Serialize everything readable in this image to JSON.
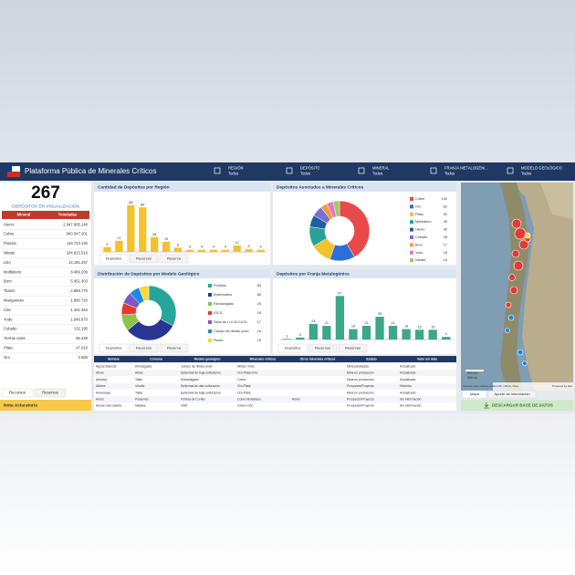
{
  "header": {
    "title": "Plataforma Pública de Minerales Críticos",
    "filters": [
      {
        "label": "REGIÓN",
        "value": "Todos"
      },
      {
        "label": "DEPÓSITO",
        "value": "Todos"
      },
      {
        "label": "MINERAL",
        "value": "Todos"
      },
      {
        "label": "FRANJA METALOGÉNI...",
        "value": "Todos"
      },
      {
        "label": "MODELO GEOLÓGICO",
        "value": "Todos"
      }
    ]
  },
  "summary": {
    "count": 267,
    "label": "DEPÓSITOS EN VISUALIZACIÓN"
  },
  "minerals_table": {
    "columns": [
      "Mineral",
      "Toneladas"
    ],
    "rows": [
      [
        "Hierro",
        "2.947.805.140"
      ],
      [
        "Cobre",
        "900.047.201"
      ],
      [
        "Potasio",
        "116.733.130"
      ],
      [
        "Nitrato",
        "104.613.510"
      ],
      [
        "Litio",
        "14.191.267"
      ],
      [
        "Molibdeno",
        "8.469.209"
      ],
      [
        "Boro",
        "5.451.403"
      ],
      [
        "Titanio",
        "2.868.770"
      ],
      [
        "Manganeso",
        "1.890.720"
      ],
      [
        "Cinc",
        "1.151.464"
      ],
      [
        "Yodo",
        "1.046.870"
      ],
      [
        "Cobalto",
        "132.195"
      ],
      [
        "Tierras raras",
        "66.428"
      ],
      [
        "Plata",
        "47.010"
      ],
      [
        "Oro",
        "3.666"
      ]
    ],
    "tabs": [
      "Recursos",
      "Reservas"
    ]
  },
  "note": "Nota Aclaratoria",
  "chart_data": [
    {
      "type": "bar",
      "title": "Cantidad de Depósitos por Región",
      "color": "#f2c12e",
      "categories": [
        null,
        null,
        null,
        null,
        null,
        null,
        null,
        null,
        null,
        null,
        null,
        null,
        null,
        null
      ],
      "values": [
        9,
        21,
        88,
        84,
        28,
        19,
        8,
        4,
        4,
        4,
        4,
        12,
        5,
        4
      ],
      "ylim": [
        0,
        100
      ],
      "tabs": [
        "Depósitos",
        "Recursos",
        "Reserva"
      ]
    },
    {
      "type": "donut",
      "title": "Depósitos Asociados a Minerales Críticos",
      "categories": [
        "Cobre",
        "Oro",
        "Plata",
        "Molibdeno",
        "Hierro",
        "Cobalto",
        "Boro",
        "Yodo",
        "Nitrato"
      ],
      "values": [
        192,
        62,
        52,
        49,
        30,
        26,
        17,
        16,
        16
      ],
      "colors": [
        "#e84a4a",
        "#2e6fd6",
        "#f2c12e",
        "#2aa198",
        "#1f5f9e",
        "#7b6fd6",
        "#f29e38",
        "#e377c2",
        "#9ccc65"
      ]
    },
    {
      "type": "donut",
      "title": "Distribución de Depósitos por Modelo Geológico",
      "categories": [
        "Pórfidos",
        "Epitermales",
        "Estratoligado",
        "IOCG",
        "Salar de Li-K-B-Cs-Sr",
        "Campo de nitrato-yodo",
        "Placer"
      ],
      "values": [
        83,
        80,
        25,
        18,
        17,
        16,
        15
      ],
      "colors": [
        "#26a69a",
        "#283593",
        "#8bc34a",
        "#e53935",
        "#7e57c2",
        "#1e88e5",
        "#fdd835"
      ],
      "tabs": [
        "Depósitos",
        "Recursos",
        "Reserva"
      ]
    },
    {
      "type": "bar",
      "title": "Depósitos por Franja Metalogénica",
      "color": "#3aa889",
      "categories": [
        null,
        null,
        null,
        null,
        null,
        null,
        null,
        null,
        null,
        null,
        null,
        null,
        null
      ],
      "values": [
        1,
        3,
        24,
        21,
        67,
        16,
        21,
        35,
        21,
        16,
        15,
        15,
        4
      ],
      "ylim": [
        0,
        80
      ],
      "tabs": [
        "Depósitos",
        "Recursos",
        "Reservas"
      ]
    }
  ],
  "deposits_table": {
    "columns": [
      "Nombre",
      "Comuna",
      "Modelo geológico",
      "Minerales críticos",
      "Otros minerales críticos",
      "Estado",
      "Valor del dato"
    ],
    "rows": [
      [
        "Aguas Blancas",
        "Antofagasta",
        "Campo de nitrato-yodo",
        "Nitrato-Yodo",
        "",
        "Mina paralizada",
        "Actualizado"
      ],
      [
        "Alhué",
        "Alhué",
        "Epitermal de baja sulfuración",
        "Oro-Plata-Cinc",
        "",
        "Mina en producción",
        "Actualizado"
      ],
      [
        "Altamira",
        "Taltal",
        "Estratoligado",
        "Cobre",
        "",
        "Mina en producción",
        "Actualizado"
      ],
      [
        "Altares",
        "Vicuña",
        "Epitermal de alta sulfuración",
        "Oro-Plata",
        "",
        "Prospecto/Proyecto",
        "Histórico"
      ],
      [
        "Amancaya",
        "Taltal",
        "Epitermal de baja sulfuración",
        "Oro-Plata",
        "",
        "Mina en producción",
        "Actualizado"
      ],
      [
        "Amos",
        "Putaendo",
        "Pórfido de Cu-Mo",
        "Cobre-Molibdeno",
        "Renio",
        "Prospecto/Proyecto",
        "Sin información"
      ],
      [
        "Anción San Sabita",
        "Natales",
        "VMS",
        "Cobre-Cinc",
        "",
        "Prospecto/Proyecto",
        "Sin información"
      ]
    ]
  },
  "map": {
    "attribution": "Sources: Esri, Maxar, Airbus DS, USGS, NGA,",
    "powered": "Powered by Esri",
    "scale": [
      "500 km",
      "300 mi"
    ],
    "tabs": [
      "Mapa",
      "Aporte de información"
    ]
  },
  "download": "DESCARGAR BASE DE DATOS"
}
